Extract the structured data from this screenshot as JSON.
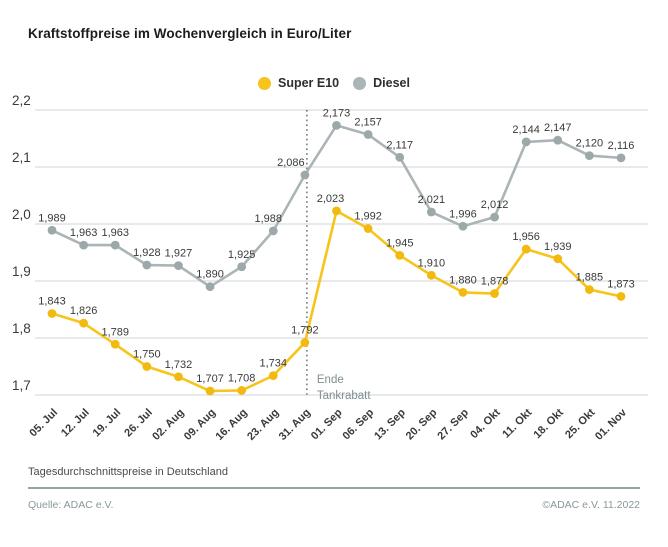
{
  "title": "Kraftstoffpreise im Wochenvergleich in Euro/Liter",
  "legend": [
    {
      "label": "Super E10",
      "color": "#f7c41c"
    },
    {
      "label": "Diesel",
      "color": "#abb4b6"
    }
  ],
  "chart_data": {
    "type": "line",
    "title": "Kraftstoffpreise im Wochenvergleich in Euro/Liter",
    "categories": [
      "05. Jul",
      "12. Jul",
      "19. Jul",
      "26. Jul",
      "02. Aug",
      "09. Aug",
      "16. Aug",
      "23. Aug",
      "31. Aug",
      "01. Sep",
      "06. Sep",
      "13. Sep",
      "20. Sep",
      "27. Sep",
      "04. Okt",
      "11. Okt",
      "18. Okt",
      "25. Okt",
      "01. Nov"
    ],
    "series": [
      {
        "name": "Super E10",
        "color": "#f7c41c",
        "marker_color": "#f2ba10",
        "values": [
          1.843,
          1.826,
          1.789,
          1.75,
          1.732,
          1.707,
          1.708,
          1.734,
          1.792,
          2.023,
          1.992,
          1.945,
          1.91,
          1.88,
          1.878,
          1.956,
          1.939,
          1.885,
          1.873
        ],
        "label_dx": {
          "9": -6
        }
      },
      {
        "name": "Diesel",
        "color": "#abb4b6",
        "marker_color": "#9da8aa",
        "values": [
          1.989,
          1.963,
          1.963,
          1.928,
          1.927,
          1.89,
          1.925,
          1.988,
          2.086,
          2.173,
          2.157,
          2.117,
          2.021,
          1.996,
          2.012,
          2.144,
          2.147,
          2.12,
          2.116
        ],
        "label_dx": {
          "7": -5,
          "8": -14
        }
      }
    ],
    "ylim": [
      1.7,
      2.2
    ],
    "yticks": [
      1.7,
      1.8,
      1.9,
      2.0,
      2.1,
      2.2
    ],
    "decimal_separator": ",",
    "grid": true,
    "legend_position": "top-center",
    "grid_color": "#d8dddd",
    "label_color": "#3a3a39",
    "annotation": {
      "lines": [
        "Ende",
        "Tankrabatt"
      ],
      "at_category": "31. Aug",
      "color": "#7f8e90"
    }
  },
  "footer": {
    "note": "Tagesdurchschnittspreise in Deutschland",
    "source": "Quelle: ADAC e.V.",
    "copyright": "©ADAC e.V.  11.2022"
  }
}
